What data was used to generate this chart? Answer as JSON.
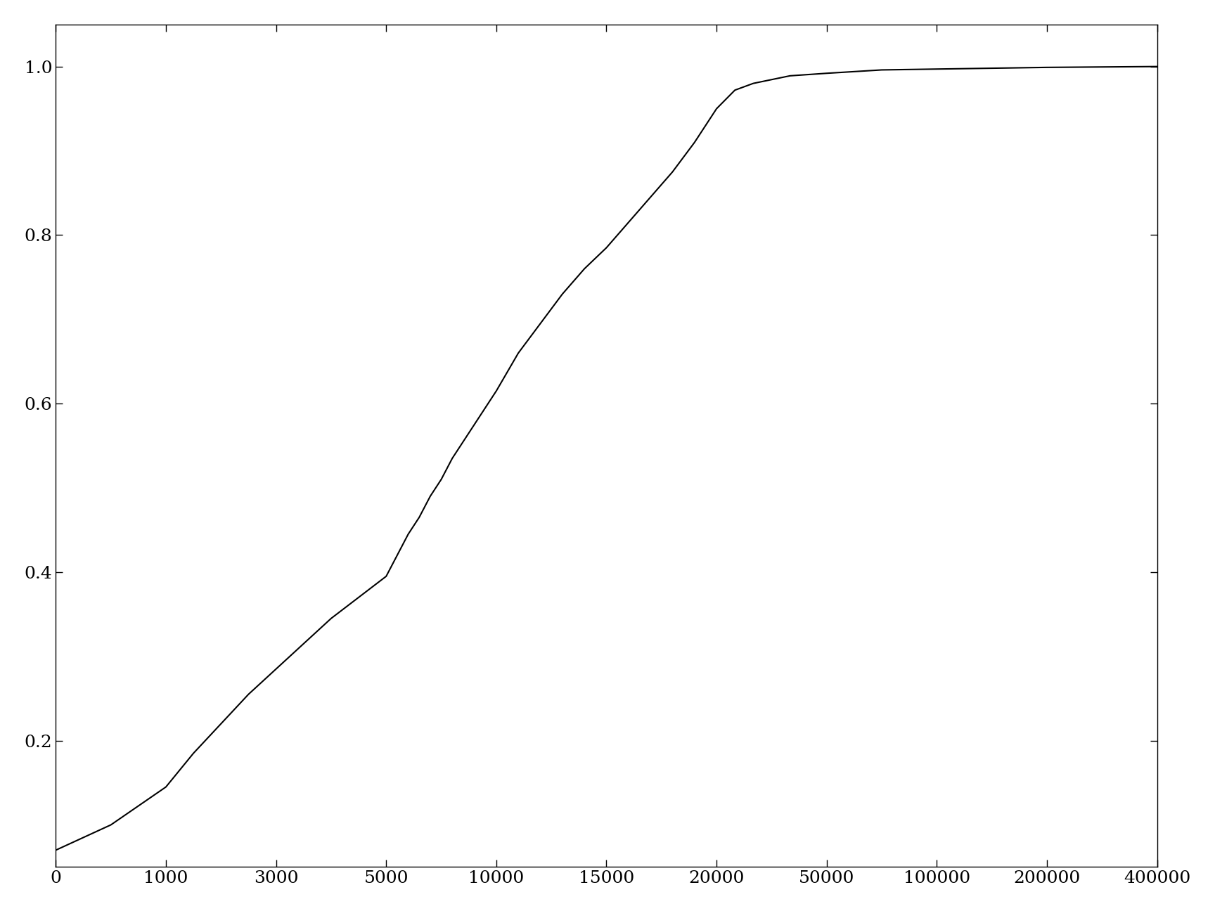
{
  "title": "",
  "x_ticks_values": [
    0,
    1000,
    3000,
    5000,
    10000,
    15000,
    20000,
    50000,
    100000,
    200000,
    400000
  ],
  "y_ticks": [
    0.2,
    0.4,
    0.6,
    0.8,
    1.0
  ],
  "y_lim": [
    0.05,
    1.05
  ],
  "background_color": "#ffffff",
  "line_color": "#000000",
  "line_width": 1.5,
  "data_x": [
    0,
    500,
    1000,
    1500,
    2000,
    2500,
    3000,
    3500,
    4000,
    4500,
    5000,
    5500,
    6000,
    6500,
    7000,
    7500,
    8000,
    8500,
    9000,
    9500,
    10000,
    11000,
    12000,
    13000,
    14000,
    15000,
    16000,
    17000,
    18000,
    19000,
    20000,
    25000,
    30000,
    40000,
    50000,
    75000,
    100000,
    150000,
    200000,
    300000,
    400000
  ],
  "data_y": [
    0.07,
    0.1,
    0.145,
    0.185,
    0.22,
    0.255,
    0.285,
    0.315,
    0.345,
    0.37,
    0.395,
    0.42,
    0.445,
    0.465,
    0.49,
    0.51,
    0.535,
    0.555,
    0.575,
    0.595,
    0.615,
    0.66,
    0.695,
    0.73,
    0.76,
    0.785,
    0.815,
    0.845,
    0.875,
    0.91,
    0.95,
    0.972,
    0.98,
    0.989,
    0.992,
    0.996,
    0.997,
    0.998,
    0.999,
    0.9995,
    1.0
  ]
}
